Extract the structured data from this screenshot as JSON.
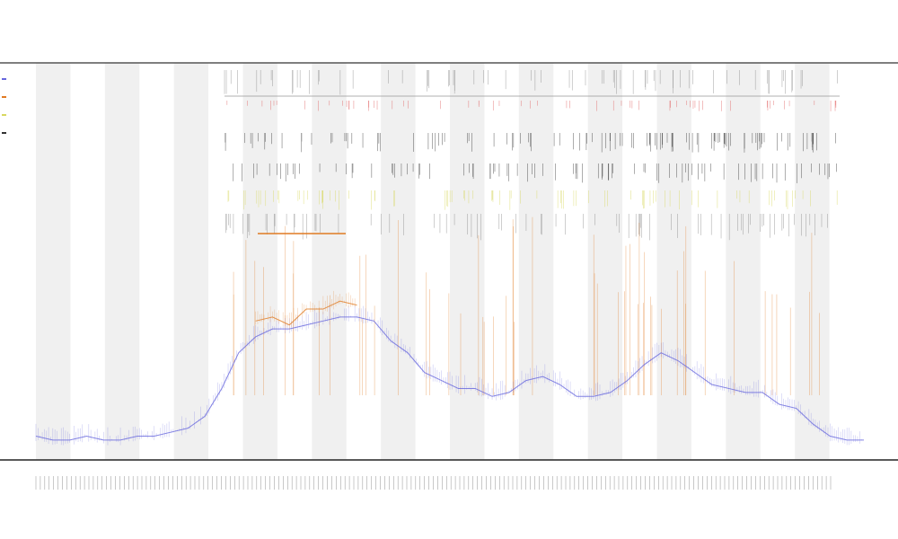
{
  "chart_data": {
    "type": "line",
    "title": "",
    "subtitle_1": "",
    "subtitle_2": "",
    "xlabel": "",
    "ylabel": "",
    "grid": false,
    "legend_position": "top-left",
    "bands": 12,
    "colors": {
      "band": "#f0f0f0",
      "axis": "#555555",
      "series_a": "#6666dd",
      "series_b": "#e07a22",
      "event_red": "#e06060",
      "event_dark": "#333333",
      "event_gray": "#888888",
      "event_yellow": "#d8d860"
    },
    "series": [
      {
        "name": "",
        "color": "#6666dd",
        "values": [
          0.06,
          0.05,
          0.05,
          0.06,
          0.05,
          0.05,
          0.06,
          0.06,
          0.07,
          0.08,
          0.11,
          0.18,
          0.27,
          0.31,
          0.33,
          0.33,
          0.34,
          0.35,
          0.36,
          0.36,
          0.35,
          0.3,
          0.27,
          0.22,
          0.2,
          0.18,
          0.18,
          0.16,
          0.17,
          0.2,
          0.21,
          0.19,
          0.16,
          0.16,
          0.17,
          0.2,
          0.24,
          0.27,
          0.25,
          0.22,
          0.19,
          0.18,
          0.17,
          0.17,
          0.14,
          0.13,
          0.09,
          0.06,
          0.05,
          0.05
        ]
      },
      {
        "name": "",
        "color": "#e07a22",
        "values": [
          null,
          null,
          null,
          null,
          null,
          null,
          null,
          null,
          null,
          null,
          null,
          null,
          null,
          0.35,
          0.36,
          0.34,
          0.38,
          0.38,
          0.4,
          0.39,
          null,
          null,
          null,
          null,
          null,
          null,
          null,
          null,
          null,
          null,
          null,
          null,
          null,
          null,
          null,
          null,
          null,
          null,
          null,
          null,
          null,
          null,
          null,
          null,
          null,
          null,
          null,
          null,
          null,
          null
        ]
      }
    ]
  }
}
